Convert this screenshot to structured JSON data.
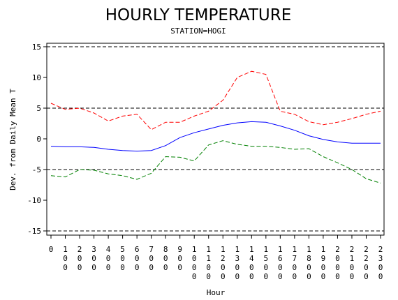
{
  "chart_data": {
    "type": "line",
    "title": "HOURLY TEMPERATURE",
    "subtitle": "STATION=HOGI",
    "xlabel": "Hour",
    "ylabel": "Dev. from Daily Mean T",
    "ylim": [
      -15,
      15
    ],
    "yticks": [
      "-15",
      "-10",
      "-5",
      "0",
      "5",
      "10",
      "15"
    ],
    "x": [
      0,
      100,
      200,
      300,
      400,
      500,
      600,
      700,
      800,
      900,
      1000,
      1100,
      1200,
      1300,
      1400,
      1500,
      1600,
      1700,
      1800,
      1900,
      2000,
      2100,
      2200,
      2300
    ],
    "x_tick_labels": [
      "0",
      "100",
      "200",
      "300",
      "400",
      "500",
      "600",
      "700",
      "800",
      "900",
      "1000",
      "1100",
      "1200",
      "1300",
      "1400",
      "1500",
      "1600",
      "1700",
      "1800",
      "1900",
      "2000",
      "2100",
      "2200",
      "2300"
    ],
    "reference_lines": [
      15,
      5,
      -5,
      -15
    ],
    "series": [
      {
        "color": "#ff0000",
        "style": "dashed",
        "values": [
          5.8,
          4.8,
          5.0,
          4.2,
          2.9,
          3.7,
          4.0,
          1.5,
          2.7,
          2.7,
          3.7,
          4.5,
          6.3,
          10.0,
          11.0,
          10.5,
          4.5,
          4.0,
          2.8,
          2.3,
          2.7,
          3.3,
          4.0,
          4.5
        ]
      },
      {
        "color": "#0000ff",
        "style": "solid",
        "values": [
          -1.2,
          -1.3,
          -1.3,
          -1.4,
          -1.7,
          -1.9,
          -2.0,
          -1.9,
          -1.1,
          0.2,
          1.0,
          1.6,
          2.2,
          2.6,
          2.8,
          2.7,
          2.1,
          1.4,
          0.5,
          -0.1,
          -0.5,
          -0.7,
          -0.7,
          -0.7
        ]
      },
      {
        "color": "#008000",
        "style": "dashed",
        "values": [
          -6.0,
          -6.2,
          -5.0,
          -5.1,
          -5.7,
          -6.0,
          -6.6,
          -5.6,
          -2.9,
          -3.0,
          -3.6,
          -1.0,
          -0.3,
          -0.9,
          -1.2,
          -1.2,
          -1.4,
          -1.7,
          -1.6,
          -2.9,
          -3.9,
          -5.0,
          -6.5,
          -7.2
        ]
      }
    ],
    "grid": false
  }
}
